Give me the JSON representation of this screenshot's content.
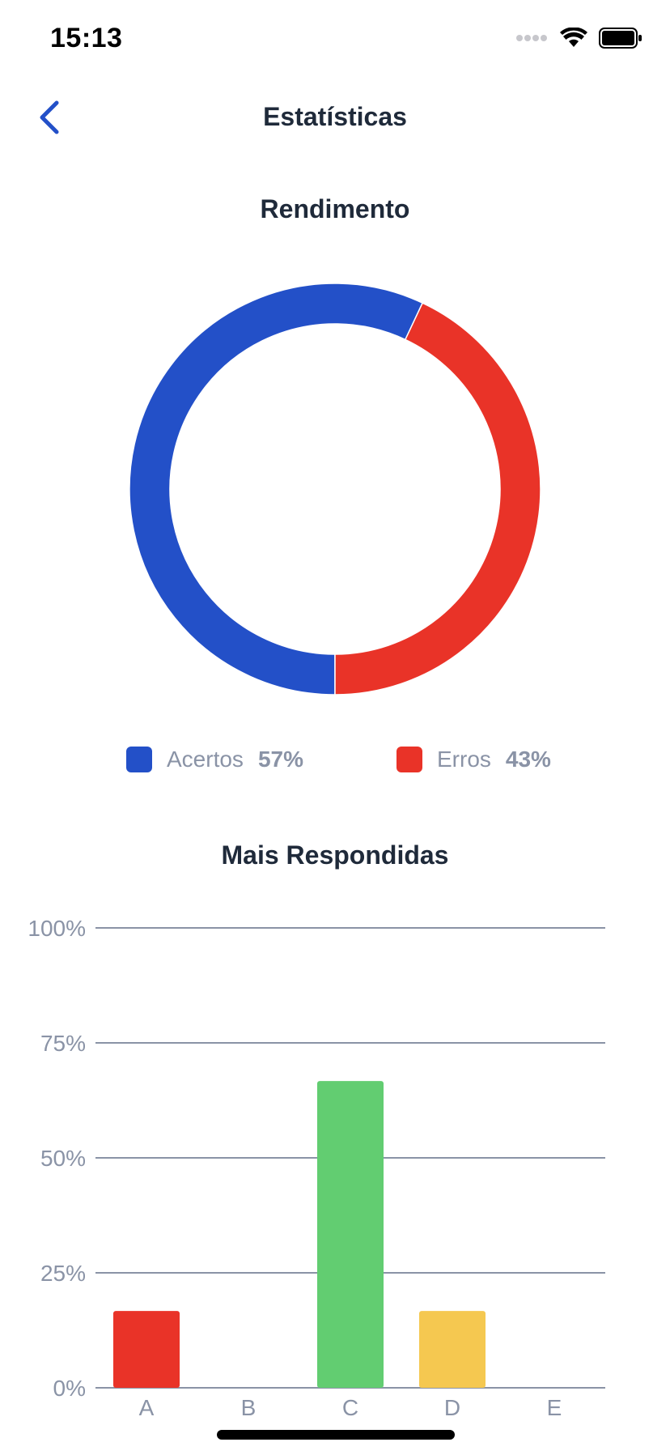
{
  "status_bar": {
    "time": "15:13",
    "icons": [
      "signal-dots-icon",
      "wifi-icon",
      "battery-icon"
    ]
  },
  "nav": {
    "title": "Estatísticas",
    "back_icon": "chevron-left-icon"
  },
  "performance": {
    "title": "Rendimento",
    "legend": [
      {
        "label": "Acertos",
        "value": "57%",
        "color": "#2350c8"
      },
      {
        "label": "Erros",
        "value": "43%",
        "color": "#e93328"
      }
    ]
  },
  "most_answered": {
    "title": "Mais Respondidas"
  },
  "colors": {
    "blue": "#2350c8",
    "red": "#e93328",
    "green": "#62cd71",
    "yellow": "#f5c850",
    "grid": "#8a93a6",
    "text": "#1f2a3a",
    "muted": "#8a93a6"
  },
  "chart_data": [
    {
      "type": "pie",
      "title": "Rendimento",
      "categories": [
        "Acertos",
        "Erros"
      ],
      "values": [
        57,
        43
      ],
      "colors": [
        "#2350c8",
        "#e93328"
      ],
      "donut": true
    },
    {
      "type": "bar",
      "title": "Mais Respondidas",
      "categories": [
        "A",
        "B",
        "C",
        "D",
        "E"
      ],
      "values": [
        16.7,
        0,
        66.7,
        16.7,
        0
      ],
      "colors": [
        "#e93328",
        "#e93328",
        "#62cd71",
        "#f5c850",
        "#e93328"
      ],
      "ylim": [
        0,
        100
      ],
      "yticks": [
        "0%",
        "25%",
        "50%",
        "75%",
        "100%"
      ],
      "ytick_values": [
        0,
        25,
        50,
        75,
        100
      ],
      "grid": true
    }
  ]
}
